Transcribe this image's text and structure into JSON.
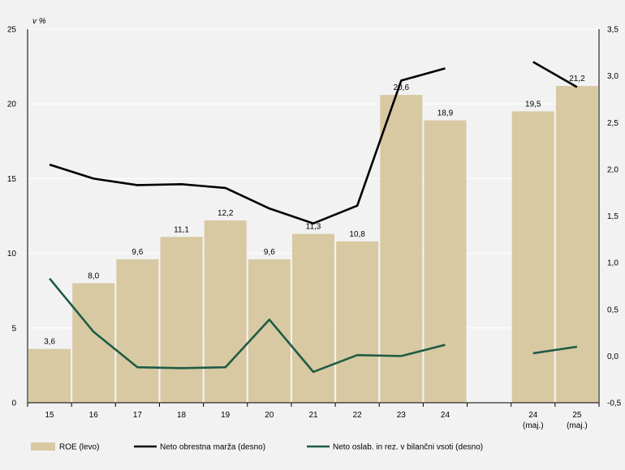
{
  "chart_data": {
    "type": "bar",
    "unit_label": "v %",
    "categories": [
      "15",
      "16",
      "17",
      "18",
      "19",
      "20",
      "21",
      "22",
      "23",
      "24",
      "",
      "24",
      "25"
    ],
    "category_sublabels": [
      "",
      "",
      "",
      "",
      "",
      "",
      "",
      "",
      "",
      "",
      "",
      "(maj.)",
      "(maj.)"
    ],
    "left_axis": {
      "ylim": [
        0,
        25
      ],
      "ticks": [
        "0",
        "5",
        "10",
        "15",
        "20",
        "25"
      ],
      "tick_values": [
        0,
        5,
        10,
        15,
        20,
        25
      ]
    },
    "right_axis": {
      "ylim": [
        -0.5,
        3.5
      ],
      "ticks": [
        "-0,5",
        "0,0",
        "0,5",
        "1,0",
        "1,5",
        "2,0",
        "2,5",
        "3,0",
        "3,5"
      ],
      "tick_values": [
        -0.5,
        0,
        0.5,
        1.0,
        1.5,
        2.0,
        2.5,
        3.0,
        3.5
      ]
    },
    "series": [
      {
        "name": "ROE (levo)",
        "type": "bar",
        "axis": "left",
        "color": "#d8c9a3",
        "values": [
          3.6,
          8.0,
          9.6,
          11.1,
          12.2,
          9.6,
          11.3,
          10.8,
          20.6,
          18.9,
          null,
          19.5,
          21.2
        ],
        "labels": [
          "3,6",
          "8,0",
          "9,6",
          "11,1",
          "12,2",
          "9,6",
          "11,3",
          "10,8",
          "20,6",
          "18,9",
          "",
          "19,5",
          "21,2"
        ]
      },
      {
        "name": "Neto obrestna marža (desno)",
        "type": "line",
        "axis": "right",
        "color": "#000000",
        "values": [
          2.05,
          1.9,
          1.83,
          1.84,
          1.8,
          1.58,
          1.42,
          1.61,
          2.95,
          3.08,
          null,
          3.15,
          2.88
        ]
      },
      {
        "name": "Neto oslab. in rez. v bilančni vsoti (desno)",
        "type": "line",
        "axis": "right",
        "color": "#1e5c44",
        "values": [
          0.83,
          0.26,
          -0.12,
          -0.13,
          -0.12,
          0.39,
          -0.17,
          0.01,
          0.0,
          0.12,
          null,
          0.03,
          0.1
        ]
      }
    ]
  }
}
